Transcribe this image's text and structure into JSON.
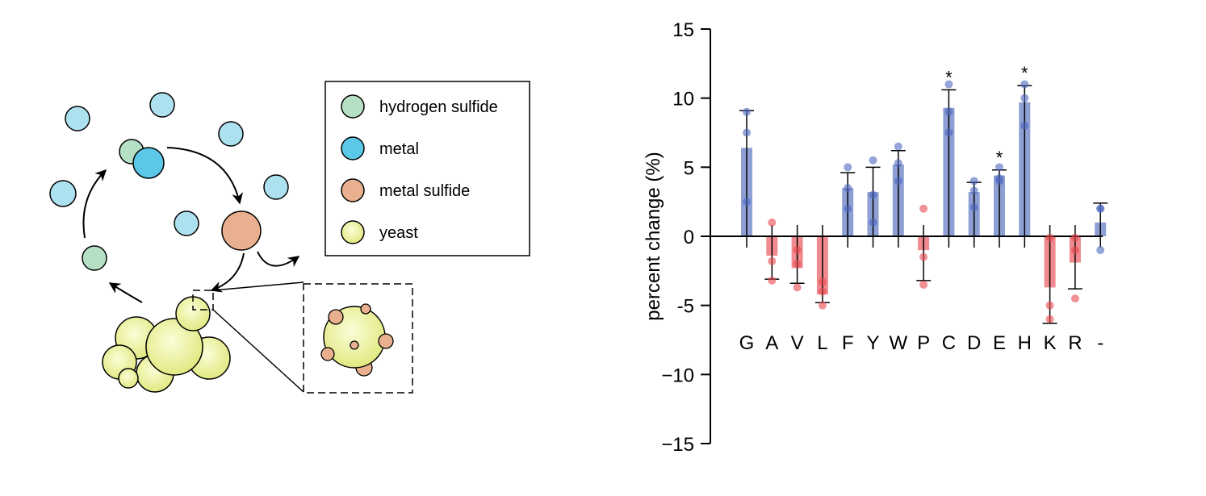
{
  "legend": {
    "items": [
      {
        "label": "hydrogen sulfide",
        "color": "#b6e0c4",
        "icon": "hydrogen-sulfide-circle"
      },
      {
        "label": "metal",
        "color": "#5bc8e8",
        "icon": "metal-circle"
      },
      {
        "label": "metal sulfide",
        "color": "#e8b08e",
        "icon": "metal-sulfide-circle"
      },
      {
        "label": "yeast",
        "color": "#e6ec8a",
        "icon": "yeast-circle"
      }
    ]
  },
  "colors": {
    "metal_light": "#aee1ef",
    "metal": "#5bc8e8",
    "hydrogen_sulfide": "#b6e0c4",
    "metal_sulfide": "#e8b08e",
    "yeast": "#e6ec8a",
    "positive_bar": "#8d9fd3",
    "positive_point": "#4d67c0",
    "negative_bar": "#f08a8e",
    "negative_point": "#e8484f"
  },
  "chart_data": {
    "type": "bar",
    "title": "",
    "xlabel": "",
    "ylabel": "percent change (%)",
    "ylim": [
      -15,
      15
    ],
    "yticks": [
      "15",
      "10",
      "5",
      "0",
      "-5",
      "−10",
      "−15"
    ],
    "categories": [
      "G",
      "A",
      "V",
      "L",
      "F",
      "Y",
      "W",
      "P",
      "C",
      "D",
      "E",
      "H",
      "K",
      "R",
      "-"
    ],
    "values": [
      6.4,
      -1.4,
      -2.3,
      -4.2,
      3.5,
      3.2,
      5.2,
      -1.0,
      9.3,
      3.2,
      4.4,
      9.7,
      -3.7,
      -1.9,
      1.0
    ],
    "error": [
      2.7,
      1.7,
      1.1,
      0.6,
      1.1,
      1.8,
      1.0,
      2.2,
      1.3,
      0.7,
      0.4,
      1.2,
      2.6,
      1.9,
      1.4
    ],
    "points": [
      [
        9.0,
        7.5,
        2.5
      ],
      [
        1.0,
        -1.8,
        -3.2
      ],
      [
        -1.0,
        -2.0,
        -3.7
      ],
      [
        -3.3,
        -4.0,
        -5.0
      ],
      [
        5.0,
        3.5,
        2.0
      ],
      [
        5.5,
        3.0,
        1.0
      ],
      [
        6.5,
        5.3,
        4.0
      ],
      [
        2.0,
        -1.5,
        -3.5
      ],
      [
        11.0,
        9.0,
        7.5
      ],
      [
        4.0,
        3.3,
        2.1
      ],
      [
        5.0,
        4.2,
        4.0
      ],
      [
        11.0,
        10.0,
        8.0
      ],
      [
        -0.1,
        -5.0,
        -6.0
      ],
      [
        -0.1,
        -1.0,
        -4.5
      ],
      [
        2.0,
        2.0,
        -1.0
      ]
    ],
    "significant": [
      "C",
      "E",
      "H"
    ],
    "significance_marker": "*",
    "grid": false,
    "legend": "none"
  }
}
